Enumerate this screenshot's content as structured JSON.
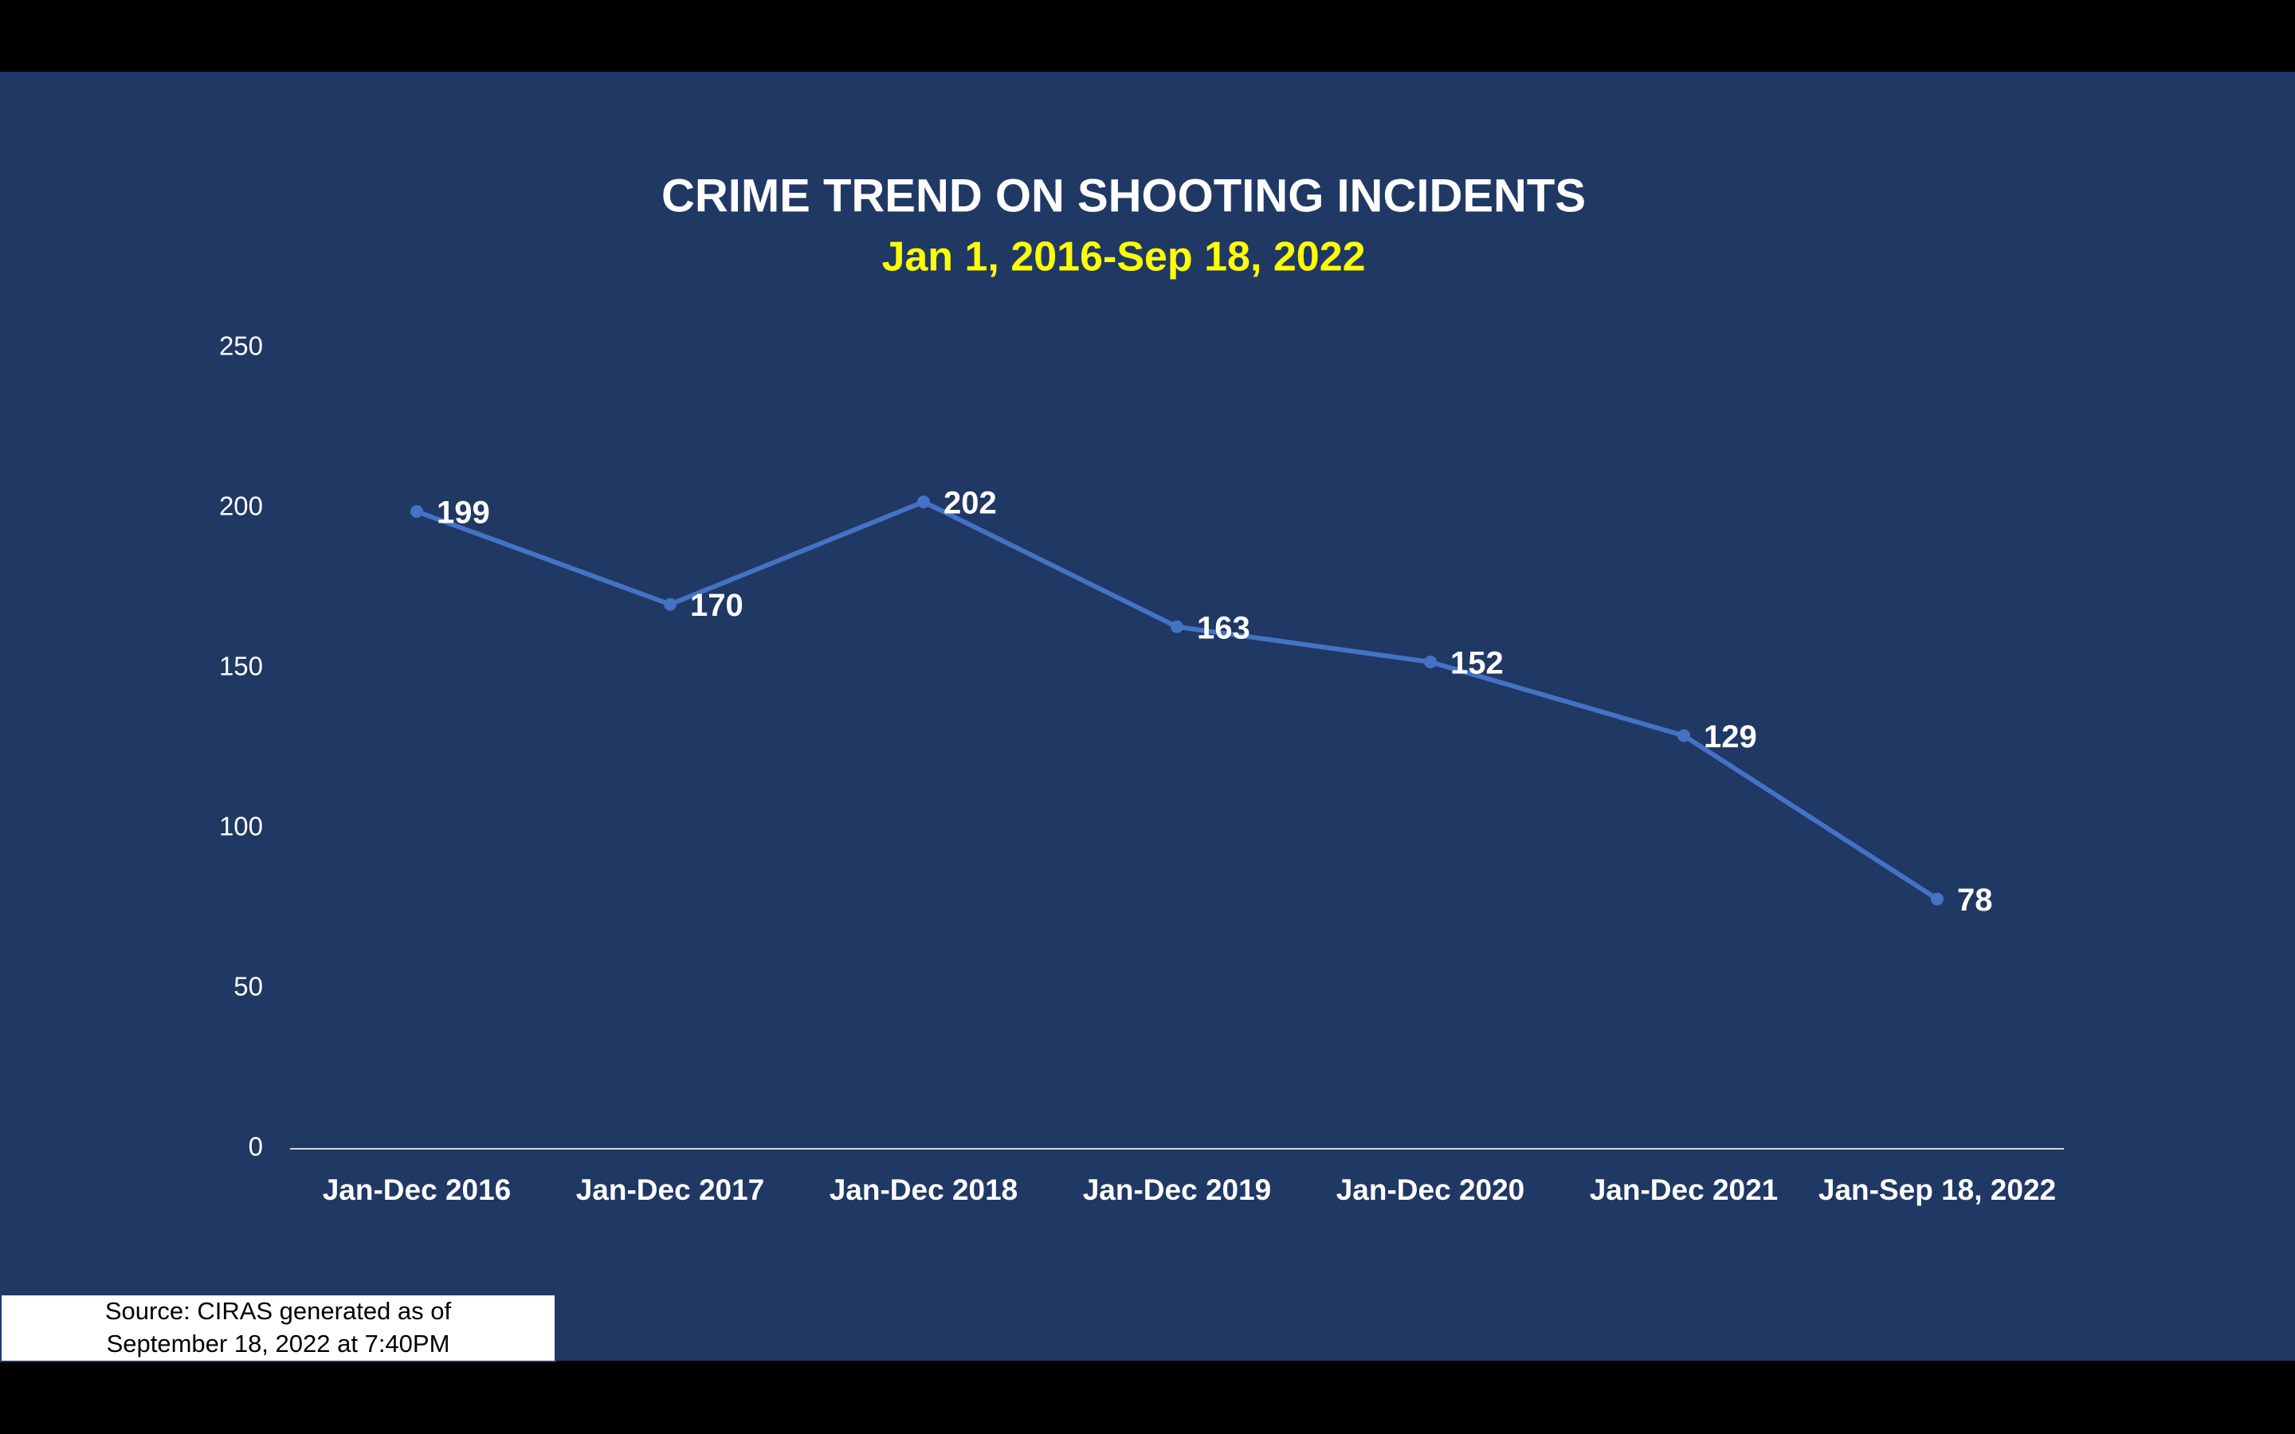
{
  "chart_data": {
    "type": "line",
    "title": "CRIME TREND ON SHOOTING INCIDENTS",
    "subtitle": "Jan 1, 2016-Sep 18, 2022",
    "categories": [
      "Jan-Dec 2016",
      "Jan-Dec 2017",
      "Jan-Dec 2018",
      "Jan-Dec 2019",
      "Jan-Dec 2020",
      "Jan-Dec 2021",
      "Jan-Sep 18, 2022"
    ],
    "series": [
      {
        "name": "Shooting incidents",
        "color": "#4472c4",
        "values": [
          199,
          170,
          202,
          163,
          152,
          129,
          78
        ]
      }
    ],
    "ylim": [
      0,
      250
    ],
    "yticks": [
      0,
      50,
      100,
      150,
      200,
      250
    ],
    "grid": false,
    "source": [
      "Source: CIRAS generated as of",
      "September 18, 2022 at 7:40PM"
    ]
  }
}
